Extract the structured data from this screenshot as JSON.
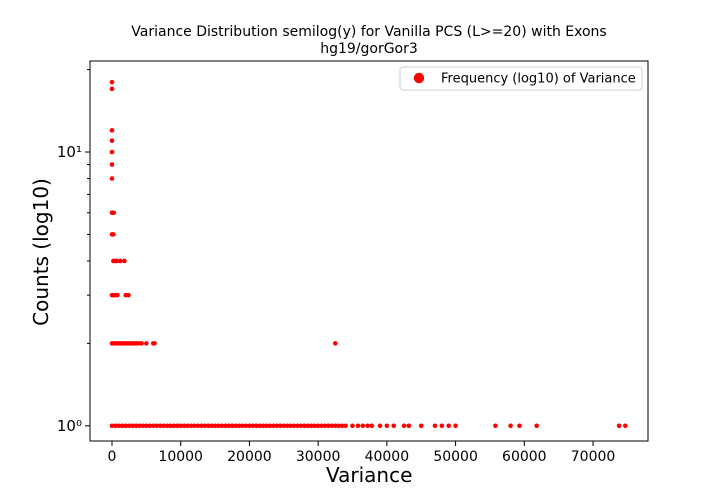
{
  "chart_data": {
    "type": "scatter",
    "title": "Variance Distribution semilog(y) for Vanilla PCS (L>=20) with Exons",
    "subtitle": "hg19/gorGor3",
    "xlabel": "Variance",
    "ylabel": "Counts (log10)",
    "y_scale": "log",
    "xlim": [
      -3200,
      78000
    ],
    "ylim": [
      0.88,
      21.5
    ],
    "x_ticks": [
      0,
      10000,
      20000,
      30000,
      40000,
      50000,
      60000,
      70000
    ],
    "x_tick_labels": [
      "0",
      "10000",
      "20000",
      "30000",
      "40000",
      "50000",
      "60000",
      "70000"
    ],
    "y_ticks": [
      1,
      10
    ],
    "y_tick_labels": [
      "10⁰",
      "10¹"
    ],
    "grid": false,
    "legend": {
      "position": "top-right",
      "entries": [
        "Frequency (log10) of Variance"
      ]
    },
    "marker_color": "#ff0000",
    "series": [
      {
        "name": "Frequency (log10) of Variance",
        "points": [
          [
            0,
            18
          ],
          [
            0,
            17
          ],
          [
            0,
            12
          ],
          [
            0,
            11
          ],
          [
            0,
            10
          ],
          [
            0,
            9
          ],
          [
            0,
            8
          ],
          [
            0,
            6
          ],
          [
            150,
            6
          ],
          [
            250,
            6
          ],
          [
            0,
            5
          ],
          [
            200,
            5
          ],
          [
            200,
            4
          ],
          [
            450,
            4
          ],
          [
            700,
            4
          ],
          [
            1200,
            4
          ],
          [
            1800,
            4
          ],
          [
            0,
            3
          ],
          [
            200,
            3
          ],
          [
            400,
            3
          ],
          [
            800,
            3
          ],
          [
            2000,
            3
          ],
          [
            2400,
            3
          ],
          [
            0,
            2
          ],
          [
            300,
            2
          ],
          [
            600,
            2
          ],
          [
            900,
            2
          ],
          [
            1200,
            2
          ],
          [
            1500,
            2
          ],
          [
            1800,
            2
          ],
          [
            2100,
            2
          ],
          [
            2400,
            2
          ],
          [
            2700,
            2
          ],
          [
            3000,
            2
          ],
          [
            3300,
            2
          ],
          [
            3600,
            2
          ],
          [
            3900,
            2
          ],
          [
            4300,
            2
          ],
          [
            5000,
            2
          ],
          [
            6000,
            2
          ],
          [
            6200,
            2
          ],
          [
            32500,
            2
          ],
          [
            0,
            1
          ],
          [
            500,
            1
          ],
          [
            1000,
            1
          ],
          [
            1500,
            1
          ],
          [
            2000,
            1
          ],
          [
            2500,
            1
          ],
          [
            3000,
            1
          ],
          [
            3500,
            1
          ],
          [
            4000,
            1
          ],
          [
            4500,
            1
          ],
          [
            5000,
            1
          ],
          [
            5500,
            1
          ],
          [
            6000,
            1
          ],
          [
            6500,
            1
          ],
          [
            7000,
            1
          ],
          [
            7500,
            1
          ],
          [
            8000,
            1
          ],
          [
            8500,
            1
          ],
          [
            9000,
            1
          ],
          [
            9500,
            1
          ],
          [
            10000,
            1
          ],
          [
            10500,
            1
          ],
          [
            11000,
            1
          ],
          [
            11500,
            1
          ],
          [
            12000,
            1
          ],
          [
            12500,
            1
          ],
          [
            13000,
            1
          ],
          [
            13500,
            1
          ],
          [
            14000,
            1
          ],
          [
            14500,
            1
          ],
          [
            15000,
            1
          ],
          [
            15500,
            1
          ],
          [
            16000,
            1
          ],
          [
            16500,
            1
          ],
          [
            17000,
            1
          ],
          [
            17500,
            1
          ],
          [
            18000,
            1
          ],
          [
            18500,
            1
          ],
          [
            19000,
            1
          ],
          [
            19500,
            1
          ],
          [
            20000,
            1
          ],
          [
            20500,
            1
          ],
          [
            21000,
            1
          ],
          [
            21500,
            1
          ],
          [
            22000,
            1
          ],
          [
            22500,
            1
          ],
          [
            23000,
            1
          ],
          [
            23500,
            1
          ],
          [
            24000,
            1
          ],
          [
            24500,
            1
          ],
          [
            25000,
            1
          ],
          [
            25500,
            1
          ],
          [
            26000,
            1
          ],
          [
            26500,
            1
          ],
          [
            27000,
            1
          ],
          [
            27500,
            1
          ],
          [
            28000,
            1
          ],
          [
            28500,
            1
          ],
          [
            29000,
            1
          ],
          [
            29500,
            1
          ],
          [
            30000,
            1
          ],
          [
            30500,
            1
          ],
          [
            31000,
            1
          ],
          [
            31500,
            1
          ],
          [
            32000,
            1
          ],
          [
            32500,
            1
          ],
          [
            33000,
            1
          ],
          [
            33500,
            1
          ],
          [
            34000,
            1
          ],
          [
            35000,
            1
          ],
          [
            35800,
            1
          ],
          [
            36500,
            1
          ],
          [
            37200,
            1
          ],
          [
            37800,
            1
          ],
          [
            39000,
            1
          ],
          [
            40000,
            1
          ],
          [
            41000,
            1
          ],
          [
            42500,
            1
          ],
          [
            43200,
            1
          ],
          [
            45000,
            1
          ],
          [
            47000,
            1
          ],
          [
            48000,
            1
          ],
          [
            49000,
            1
          ],
          [
            50000,
            1
          ],
          [
            55800,
            1
          ],
          [
            58000,
            1
          ],
          [
            59300,
            1
          ],
          [
            61800,
            1
          ],
          [
            73800,
            1
          ],
          [
            74700,
            1
          ]
        ]
      }
    ]
  }
}
